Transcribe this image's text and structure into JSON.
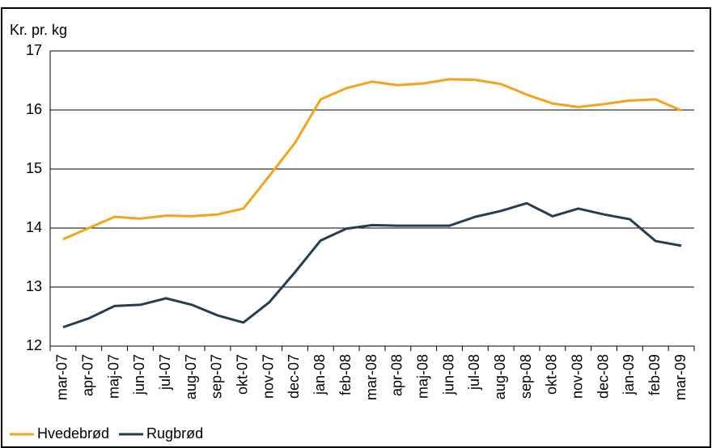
{
  "chart_data": {
    "type": "line",
    "y_label": "Kr. pr. kg",
    "categories": [
      "mar-07",
      "apr-07",
      "maj-07",
      "jun-07",
      "jul-07",
      "aug-07",
      "sep-07",
      "okt-07",
      "nov-07",
      "dec-07",
      "jan-08",
      "feb-08",
      "mar-08",
      "apr-08",
      "maj-08",
      "jun-08",
      "jul-08",
      "aug-08",
      "sep-08",
      "okt-08",
      "nov-08",
      "dec-08",
      "jan-09",
      "feb-09",
      "mar-09"
    ],
    "series": [
      {
        "name": "Hvedebrød",
        "color": "#f7a21b",
        "values": [
          13.81,
          14.0,
          14.19,
          14.16,
          14.21,
          14.2,
          14.23,
          14.33,
          14.88,
          15.44,
          16.18,
          16.37,
          16.48,
          16.42,
          16.45,
          16.52,
          16.51,
          16.44,
          16.26,
          16.11,
          16.05,
          16.1,
          16.16,
          16.18,
          15.99
        ]
      },
      {
        "name": "Rugbrød",
        "color": "#243f52",
        "values": [
          12.32,
          12.47,
          12.68,
          12.7,
          12.81,
          12.7,
          12.52,
          12.4,
          12.74,
          13.25,
          13.79,
          13.99,
          14.05,
          14.04,
          14.04,
          14.04,
          14.19,
          14.29,
          14.42,
          14.2,
          14.33,
          14.23,
          14.15,
          13.78,
          13.7
        ]
      }
    ],
    "ylim": [
      12,
      17
    ],
    "yticks": [
      12,
      13,
      14,
      15,
      16,
      17
    ],
    "grid": true,
    "legend": "bottom-left"
  }
}
